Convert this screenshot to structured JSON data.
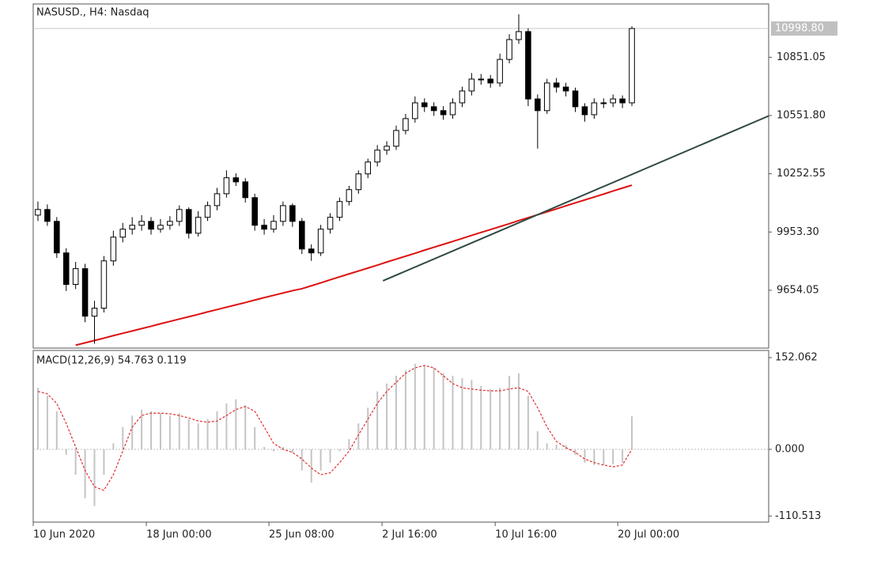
{
  "chart_data": {
    "type": "candlestick",
    "title": "NASUSD., H4: Nasdaq",
    "categories": [
      "10 Jun 2020",
      null,
      null,
      null,
      null,
      null,
      null,
      null,
      null,
      null,
      null,
      null,
      "18 Jun 00:00",
      null,
      null,
      null,
      null,
      null,
      null,
      null,
      null,
      null,
      null,
      null,
      null,
      "25 Jun 08:00",
      null,
      null,
      null,
      null,
      null,
      null,
      null,
      null,
      null,
      null,
      null,
      "2 Jul 16:00",
      null,
      null,
      null,
      null,
      null,
      null,
      null,
      null,
      null,
      null,
      null,
      "10 Jul 16:00",
      null,
      null,
      null,
      null,
      null,
      null,
      null,
      null,
      null,
      null,
      null,
      null,
      "20 Jul 00:00",
      null
    ],
    "open": [
      10040,
      10069,
      10008,
      9846,
      9684,
      9765,
      9521,
      9562,
      9805,
      9927,
      9968,
      9988,
      10008,
      9968,
      9988,
      10008,
      10069,
      9947,
      10029,
      10089,
      10150,
      10232,
      10211,
      10130,
      9988,
      9968,
      10008,
      10089,
      10008,
      9866,
      9846,
      9968,
      10029,
      10110,
      10171,
      10252,
      10313,
      10374,
      10394,
      10475,
      10536,
      10617,
      10597,
      10577,
      10556,
      10617,
      10678,
      10739,
      10739,
      10719,
      10840,
      10942,
      10983,
      10637,
      10577,
      10719,
      10698,
      10678,
      10597,
      10556,
      10617,
      10617,
      10637,
      10617
    ],
    "high": [
      10110,
      10095,
      10030,
      9870,
      9800,
      9790,
      9600,
      9830,
      9960,
      10000,
      10030,
      10040,
      10030,
      10020,
      10035,
      10090,
      10080,
      10060,
      10110,
      10180,
      10270,
      10255,
      10230,
      10150,
      10020,
      10040,
      10110,
      10100,
      10025,
      9890,
      9990,
      10050,
      10130,
      10190,
      10270,
      10330,
      10400,
      10420,
      10500,
      10560,
      10650,
      10640,
      10620,
      10600,
      10640,
      10700,
      10770,
      10765,
      10760,
      10870,
      10970,
      11072,
      11000,
      10660,
      10740,
      10745,
      10720,
      10695,
      10615,
      10640,
      10640,
      10660,
      10655,
      11010
    ],
    "low": [
      10010,
      9985,
      9820,
      9650,
      9660,
      9490,
      9379,
      9540,
      9780,
      9900,
      9940,
      9960,
      9940,
      9950,
      9965,
      9985,
      9920,
      9930,
      10010,
      10065,
      10130,
      10190,
      10105,
      9960,
      9940,
      9950,
      9985,
      9980,
      9840,
      9805,
      9830,
      9945,
      10010,
      10090,
      10150,
      10230,
      10290,
      10350,
      10375,
      10455,
      10515,
      10570,
      10550,
      10530,
      10535,
      10595,
      10655,
      10710,
      10695,
      10700,
      10820,
      10920,
      10600,
      10382,
      10560,
      10670,
      10650,
      10570,
      10520,
      10535,
      10590,
      10595,
      10590,
      10600
    ],
    "close": [
      10069,
      10008,
      9846,
      9684,
      9765,
      9521,
      9562,
      9805,
      9927,
      9968,
      9988,
      10008,
      9968,
      9988,
      10008,
      10069,
      9947,
      10029,
      10089,
      10150,
      10232,
      10211,
      10130,
      9988,
      9968,
      10008,
      10089,
      10008,
      9866,
      9846,
      9968,
      10029,
      10110,
      10171,
      10252,
      10313,
      10374,
      10394,
      10475,
      10536,
      10617,
      10597,
      10577,
      10556,
      10617,
      10678,
      10739,
      10739,
      10719,
      10840,
      10942,
      10983,
      10637,
      10577,
      10719,
      10698,
      10678,
      10597,
      10556,
      10617,
      10617,
      10637,
      10617,
      10998.8
    ],
    "bull_color": "#ffffff",
    "bear_color": "#000000",
    "ma": {
      "color": "#dd1111",
      "values": [
        null,
        null,
        null,
        null,
        9372,
        9384,
        9396,
        9408,
        9421,
        9433,
        9445,
        9457,
        9469,
        9482,
        9494,
        9506,
        9518,
        9530,
        9543,
        9555,
        9567,
        9579,
        9591,
        9604,
        9616,
        9628,
        9640,
        9652,
        9662,
        9677,
        9692,
        9708,
        9723,
        9738,
        9753,
        9768,
        9783,
        9799,
        9814,
        9829,
        9844,
        9860,
        9875,
        9890,
        9905,
        9920,
        9936,
        9951,
        9966,
        9981,
        9996,
        10012,
        10027,
        10042,
        10057,
        10072,
        10088,
        10103,
        10118,
        10133,
        10148,
        10164,
        10179,
        10194
      ]
    },
    "trendline": {
      "color": "#2f4a44",
      "x": [
        36.6,
        94.3
      ],
      "y": [
        9702.8,
        10897.3
      ]
    },
    "current_price": {
      "value": 10998.8,
      "label": "10998.80"
    },
    "ylim": [
      9357,
      11125
    ],
    "yticks": [
      {
        "value": 10851.05,
        "label": "10851.05"
      },
      {
        "value": 10551.8,
        "label": "10551.80"
      },
      10252.55,
      {
        "value": 9953.3,
        "label": "9953.30"
      },
      9654.05
    ],
    "macd": {
      "title": "MACD(12,26,9) 54.763 0.119",
      "histogram": {
        "color": "#c4c4c4",
        "values": [
          102,
          89,
          63,
          -9,
          -42,
          -81,
          -94,
          -42,
          10,
          37,
          56,
          66,
          63,
          60,
          56,
          60,
          50,
          43,
          50,
          63,
          76,
          83,
          73,
          37,
          4,
          -3,
          4,
          -5,
          -35,
          -55,
          -35,
          -22,
          -3,
          17,
          43,
          69,
          96,
          109,
          122,
          131,
          142,
          139,
          135,
          126,
          122,
          118,
          115,
          105,
          100,
          102,
          122,
          126,
          89,
          30,
          10,
          8,
          7,
          -9,
          -22,
          -26,
          -26,
          -25,
          -22,
          54.763
        ]
      },
      "signal": {
        "color": "#e03030",
        "values": [
          96,
          92,
          76,
          43,
          4,
          -35,
          -62,
          -68,
          -42,
          -3,
          37,
          56,
          60,
          60,
          59,
          56,
          52,
          47,
          45,
          47,
          56,
          66,
          71,
          63,
          37,
          10,
          0,
          -5,
          -16,
          -31,
          -42,
          -39,
          -22,
          -3,
          24,
          50,
          76,
          96,
          111,
          126,
          135,
          139,
          135,
          122,
          109,
          102,
          100,
          98,
          97,
          97,
          100,
          102,
          96,
          69,
          37,
          13,
          3,
          -5,
          -16,
          -22,
          -26,
          -29,
          -26,
          0.119
        ]
      },
      "ylim": [
        -120.6,
        163.9
      ],
      "yticks": [
        152.062,
        {
          "value": 0,
          "label": "0.000"
        },
        -110.513
      ]
    }
  }
}
